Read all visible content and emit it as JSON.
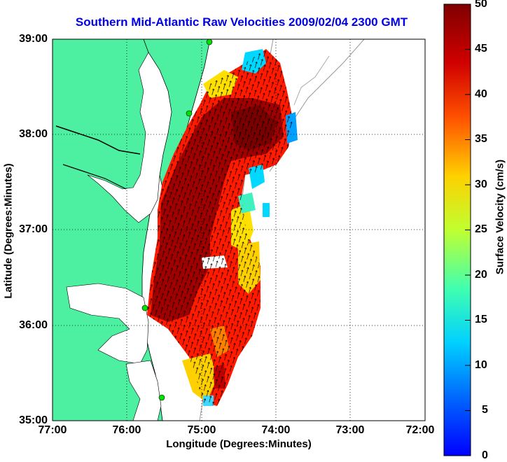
{
  "title": "Southern Mid-Atlantic Raw Velocities 2009/02/04 2300 GMT",
  "map": {
    "xlabel": "Longitude (Degrees:Minutes)",
    "ylabel": "Latitude (Degrees:Minutes)",
    "lon_range": [
      -77,
      -72
    ],
    "lat_range": [
      35,
      39
    ],
    "x_ticks": [
      "77:00",
      "76:00",
      "75:00",
      "74:00",
      "73:00",
      "72:00"
    ],
    "y_ticks": [
      "39:00",
      "38:00",
      "37:00",
      "36:00",
      "35:00"
    ],
    "land_color": "#4cf0a0",
    "grid": "dotted"
  },
  "colorbar": {
    "label": "Surface Velocity (cm/s)",
    "range": [
      0,
      50
    ],
    "ticks": [
      "50",
      "45",
      "40",
      "35",
      "30",
      "25",
      "20",
      "15",
      "10",
      "5",
      "0"
    ],
    "colormap": "jet"
  }
}
